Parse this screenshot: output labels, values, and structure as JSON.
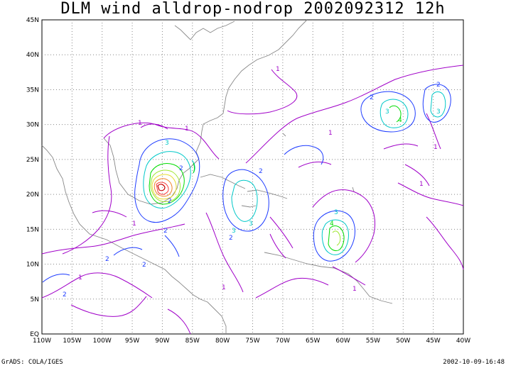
{
  "title": "DLM wind alldrop-nodrop 2002092312 12h",
  "footer": {
    "left": "GrADS: COLA/IGES",
    "right": "2002-10-09-16:48"
  },
  "map": {
    "lat_range": [
      0,
      45
    ],
    "lon_range": [
      -110,
      -40
    ],
    "lat_labels": [
      "EQ",
      "5N",
      "10N",
      "15N",
      "20N",
      "25N",
      "30N",
      "35N",
      "40N",
      "45N"
    ],
    "lon_labels": [
      "110W",
      "105W",
      "100W",
      "95W",
      "90W",
      "85W",
      "80W",
      "75W",
      "70W",
      "65W",
      "60W",
      "55W",
      "50W",
      "45W",
      "40W"
    ],
    "contour_colors": {
      "1": "#a000c8",
      "2": "#1e3cff",
      "3": "#00c8c8",
      "4": "#00dc00",
      "5": "#a0e632",
      "6": "#e6dc32",
      "7": "#f08228",
      "8": "#fa3c3c",
      "9": "#c80000"
    }
  }
}
